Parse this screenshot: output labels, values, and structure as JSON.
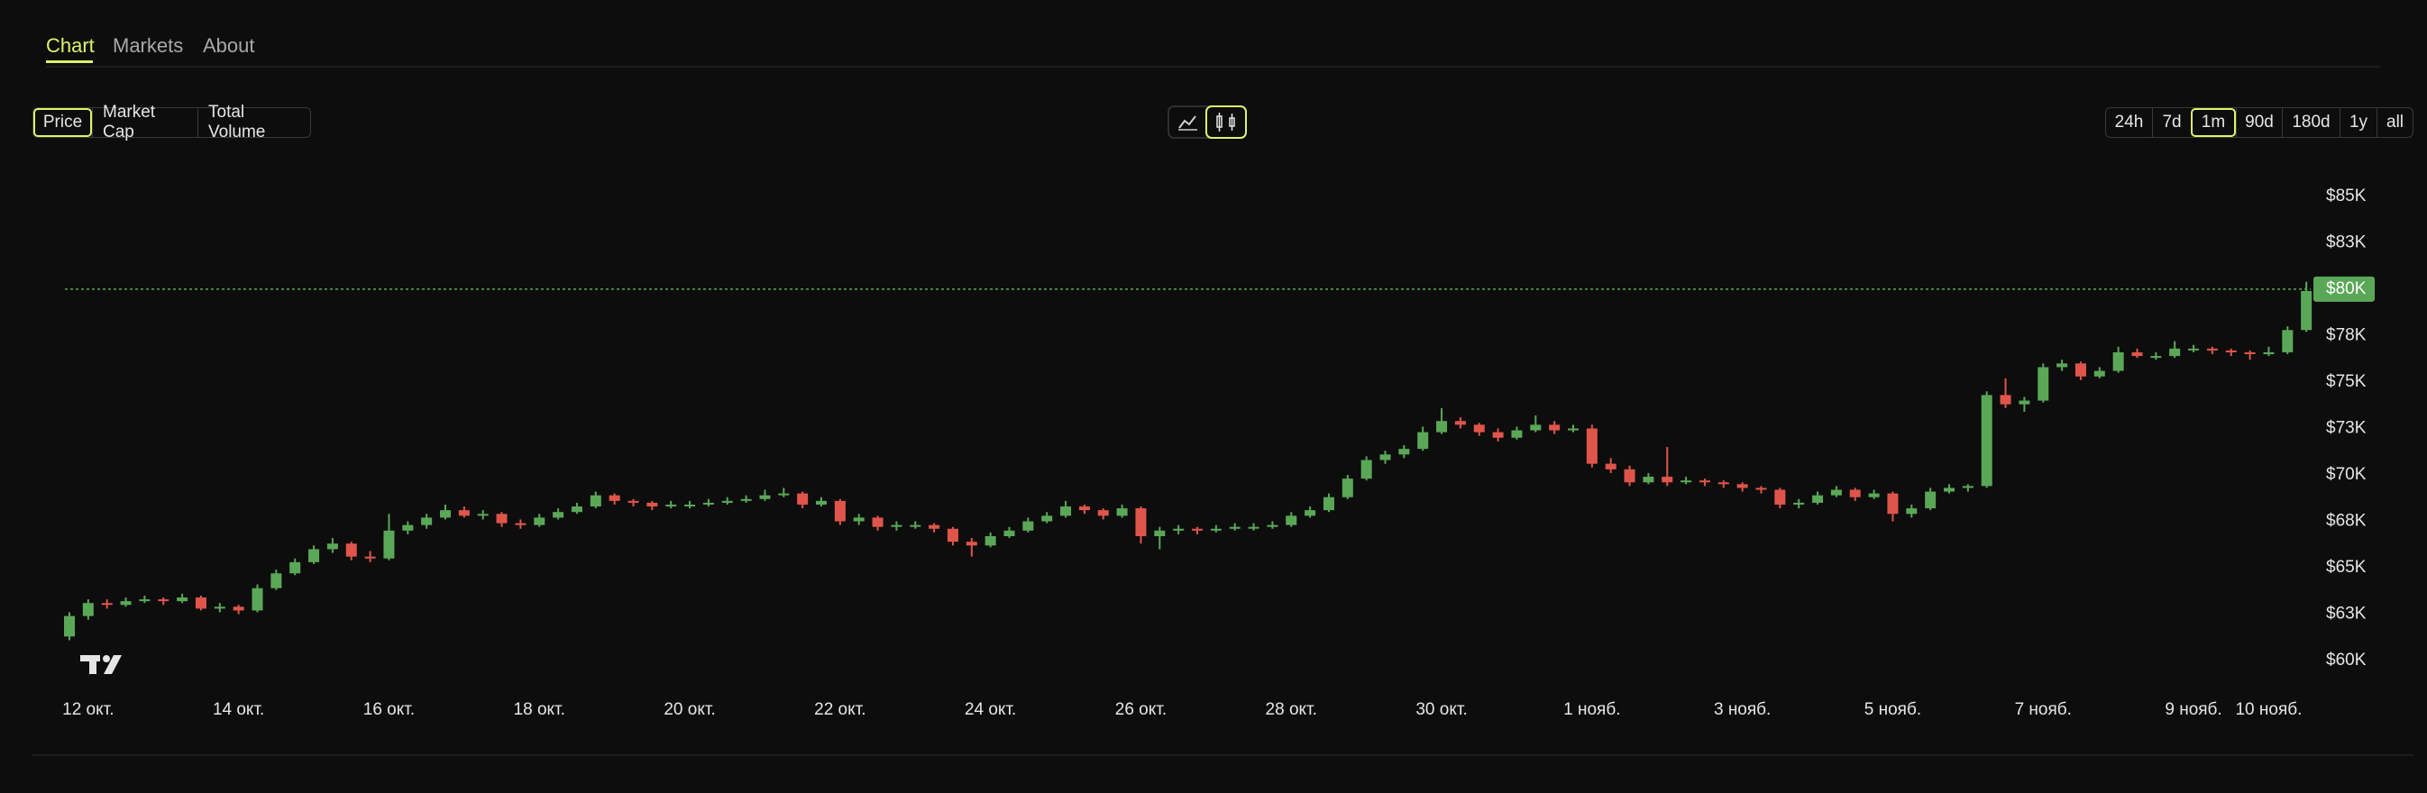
{
  "tabs": {
    "items": [
      "Chart",
      "Markets",
      "About"
    ],
    "active": 0
  },
  "metric_buttons": {
    "items": [
      "Price",
      "Market Cap",
      "Total Volume"
    ],
    "active": 0
  },
  "range_buttons": {
    "items": [
      "24h",
      "7d",
      "1m",
      "90d",
      "180d",
      "1y",
      "all"
    ],
    "active": 2
  },
  "chart_data": {
    "type": "candlestick",
    "categories": [
      null,
      "12 окт.",
      null,
      null,
      null,
      null,
      null,
      null,
      null,
      "14 окт.",
      null,
      null,
      null,
      null,
      null,
      null,
      null,
      "16 окт.",
      null,
      null,
      null,
      null,
      null,
      null,
      null,
      "18 окт.",
      null,
      null,
      null,
      null,
      null,
      null,
      null,
      "20 окт.",
      null,
      null,
      null,
      null,
      null,
      null,
      null,
      "22 окт.",
      null,
      null,
      null,
      null,
      null,
      null,
      null,
      "24 окт.",
      null,
      null,
      null,
      null,
      null,
      null,
      null,
      "26 окт.",
      null,
      null,
      null,
      null,
      null,
      null,
      null,
      "28 окт.",
      null,
      null,
      null,
      null,
      null,
      null,
      null,
      "30 окт.",
      null,
      null,
      null,
      null,
      null,
      null,
      null,
      "1 нояб.",
      null,
      null,
      null,
      null,
      null,
      null,
      null,
      "3 нояб.",
      null,
      null,
      null,
      null,
      null,
      null,
      null,
      "5 нояб.",
      null,
      null,
      null,
      null,
      null,
      null,
      null,
      "7 нояб.",
      null,
      null,
      null,
      null,
      null,
      null,
      null,
      "9 нояб.",
      null,
      null,
      null,
      "10 нояб.",
      null,
      null
    ],
    "candles": [
      [
        61300,
        62600,
        61100,
        62400
      ],
      [
        62400,
        63300,
        62200,
        63100
      ],
      [
        63100,
        63300,
        62800,
        63000
      ],
      [
        63000,
        63400,
        62900,
        63200
      ],
      [
        63200,
        63500,
        63100,
        63300
      ],
      [
        63300,
        63400,
        63000,
        63200
      ],
      [
        63200,
        63600,
        63100,
        63400
      ],
      [
        63400,
        63500,
        62700,
        62800
      ],
      [
        62800,
        63100,
        62600,
        62900
      ],
      [
        62900,
        63000,
        62500,
        62700
      ],
      [
        62700,
        64100,
        62600,
        63900
      ],
      [
        63900,
        64900,
        63800,
        64700
      ],
      [
        64700,
        65500,
        64600,
        65300
      ],
      [
        65300,
        66200,
        65200,
        66000
      ],
      [
        66000,
        66600,
        65800,
        66300
      ],
      [
        66300,
        66400,
        65400,
        65600
      ],
      [
        65600,
        65900,
        65300,
        65500
      ],
      [
        65500,
        67900,
        65400,
        67000
      ],
      [
        67000,
        67500,
        66800,
        67300
      ],
      [
        67300,
        67900,
        67100,
        67700
      ],
      [
        67700,
        68400,
        67600,
        68100
      ],
      [
        68100,
        68300,
        67700,
        67800
      ],
      [
        67800,
        68100,
        67600,
        67900
      ],
      [
        67900,
        68000,
        67200,
        67400
      ],
      [
        67400,
        67600,
        67100,
        67300
      ],
      [
        67300,
        67900,
        67200,
        67700
      ],
      [
        67700,
        68200,
        67600,
        68000
      ],
      [
        68000,
        68500,
        67900,
        68300
      ],
      [
        68300,
        69100,
        68200,
        68900
      ],
      [
        68900,
        69000,
        68400,
        68600
      ],
      [
        68600,
        68700,
        68300,
        68500
      ],
      [
        68500,
        68600,
        68100,
        68300
      ],
      [
        68300,
        68600,
        68200,
        68400
      ],
      [
        68400,
        68600,
        68200,
        68400
      ],
      [
        68400,
        68700,
        68300,
        68500
      ],
      [
        68500,
        68800,
        68400,
        68600
      ],
      [
        68600,
        68900,
        68500,
        68700
      ],
      [
        68700,
        69200,
        68600,
        68900
      ],
      [
        68900,
        69300,
        68800,
        69000
      ],
      [
        69000,
        69100,
        68200,
        68400
      ],
      [
        68400,
        68800,
        68300,
        68600
      ],
      [
        68600,
        68700,
        67300,
        67500
      ],
      [
        67500,
        67900,
        67300,
        67700
      ],
      [
        67700,
        67800,
        67000,
        67200
      ],
      [
        67200,
        67500,
        67000,
        67300
      ],
      [
        67300,
        67500,
        67100,
        67300
      ],
      [
        67300,
        67400,
        66900,
        67100
      ],
      [
        67100,
        67200,
        66200,
        66400
      ],
      [
        66400,
        66600,
        65600,
        66200
      ],
      [
        66200,
        66900,
        66100,
        66700
      ],
      [
        66700,
        67200,
        66600,
        67000
      ],
      [
        67000,
        67700,
        66900,
        67500
      ],
      [
        67500,
        68000,
        67400,
        67800
      ],
      [
        67800,
        68600,
        67700,
        68300
      ],
      [
        68300,
        68400,
        67900,
        68100
      ],
      [
        68100,
        68200,
        67600,
        67800
      ],
      [
        67800,
        68400,
        67700,
        68200
      ],
      [
        68200,
        68300,
        66300,
        66700
      ],
      [
        66700,
        67200,
        66000,
        67000
      ],
      [
        67000,
        67300,
        66800,
        67100
      ],
      [
        67100,
        67200,
        66800,
        67000
      ],
      [
        67000,
        67300,
        66900,
        67100
      ],
      [
        67100,
        67400,
        67000,
        67200
      ],
      [
        67200,
        67400,
        67000,
        67200
      ],
      [
        67200,
        67500,
        67100,
        67300
      ],
      [
        67300,
        68000,
        67200,
        67800
      ],
      [
        67800,
        68300,
        67700,
        68100
      ],
      [
        68100,
        69000,
        68000,
        68800
      ],
      [
        68800,
        70000,
        68700,
        69800
      ],
      [
        69800,
        71000,
        69700,
        70800
      ],
      [
        70800,
        71300,
        70600,
        71100
      ],
      [
        71100,
        71600,
        70900,
        71400
      ],
      [
        71400,
        72600,
        71300,
        72300
      ],
      [
        72300,
        73600,
        72200,
        72900
      ],
      [
        72900,
        73100,
        72500,
        72700
      ],
      [
        72700,
        72800,
        72100,
        72300
      ],
      [
        72300,
        72500,
        71800,
        72000
      ],
      [
        72000,
        72600,
        71900,
        72400
      ],
      [
        72400,
        73200,
        72300,
        72700
      ],
      [
        72700,
        72900,
        72200,
        72400
      ],
      [
        72400,
        72700,
        72300,
        72500
      ],
      [
        72500,
        72700,
        70400,
        70600
      ],
      [
        70600,
        70900,
        70100,
        70300
      ],
      [
        70300,
        70500,
        69400,
        69600
      ],
      [
        69600,
        70100,
        69500,
        69900
      ],
      [
        69900,
        71500,
        69400,
        69600
      ],
      [
        69600,
        69900,
        69500,
        69700
      ],
      [
        69700,
        69800,
        69400,
        69600
      ],
      [
        69600,
        69700,
        69300,
        69500
      ],
      [
        69500,
        69600,
        69100,
        69300
      ],
      [
        69300,
        69400,
        69000,
        69200
      ],
      [
        69200,
        69300,
        68200,
        68400
      ],
      [
        68400,
        68700,
        68200,
        68500
      ],
      [
        68500,
        69100,
        68400,
        68900
      ],
      [
        68900,
        69400,
        68800,
        69200
      ],
      [
        69200,
        69300,
        68600,
        68800
      ],
      [
        68800,
        69200,
        68700,
        69000
      ],
      [
        69000,
        69100,
        67500,
        67900
      ],
      [
        67900,
        68400,
        67700,
        68200
      ],
      [
        68200,
        69300,
        68100,
        69100
      ],
      [
        69100,
        69500,
        69000,
        69300
      ],
      [
        69300,
        69500,
        69100,
        69400
      ],
      [
        69400,
        74500,
        69300,
        74300
      ],
      [
        74300,
        75200,
        73600,
        73800
      ],
      [
        73800,
        74200,
        73400,
        74000
      ],
      [
        74000,
        76000,
        73900,
        75800
      ],
      [
        75800,
        76200,
        75600,
        76000
      ],
      [
        76000,
        76100,
        75100,
        75300
      ],
      [
        75300,
        75800,
        75200,
        75600
      ],
      [
        75600,
        76900,
        75500,
        76600
      ],
      [
        76600,
        76800,
        76300,
        76400
      ],
      [
        76400,
        76600,
        76200,
        76400
      ],
      [
        76400,
        77200,
        76300,
        76800
      ],
      [
        76800,
        77000,
        76600,
        76800
      ],
      [
        76800,
        76900,
        76500,
        76700
      ],
      [
        76700,
        76800,
        76400,
        76600
      ],
      [
        76600,
        76700,
        76200,
        76500
      ],
      [
        76500,
        76900,
        76400,
        76600
      ],
      [
        76600,
        78000,
        76500,
        77800
      ],
      [
        77800,
        80400,
        77700,
        79900
      ]
    ],
    "up_color": "#5aa857",
    "down_color": "#e0554b",
    "ylim": [
      58500,
      86400
    ],
    "yticks": [
      {
        "value": 60000,
        "label": "$60K"
      },
      {
        "value": 62500,
        "label": "$63K"
      },
      {
        "value": 65000,
        "label": "$65K"
      },
      {
        "value": 67500,
        "label": "$68K"
      },
      {
        "value": 70000,
        "label": "$70K"
      },
      {
        "value": 72500,
        "label": "$73K"
      },
      {
        "value": 75000,
        "label": "$75K"
      },
      {
        "value": 77500,
        "label": "$78K"
      },
      {
        "value": 80000,
        "label": "$80K"
      },
      {
        "value": 82500,
        "label": "$83K"
      },
      {
        "value": 85000,
        "label": "$85K"
      }
    ],
    "price_line": {
      "value": 80000,
      "label": "$80K",
      "color": "#5aa857"
    }
  }
}
